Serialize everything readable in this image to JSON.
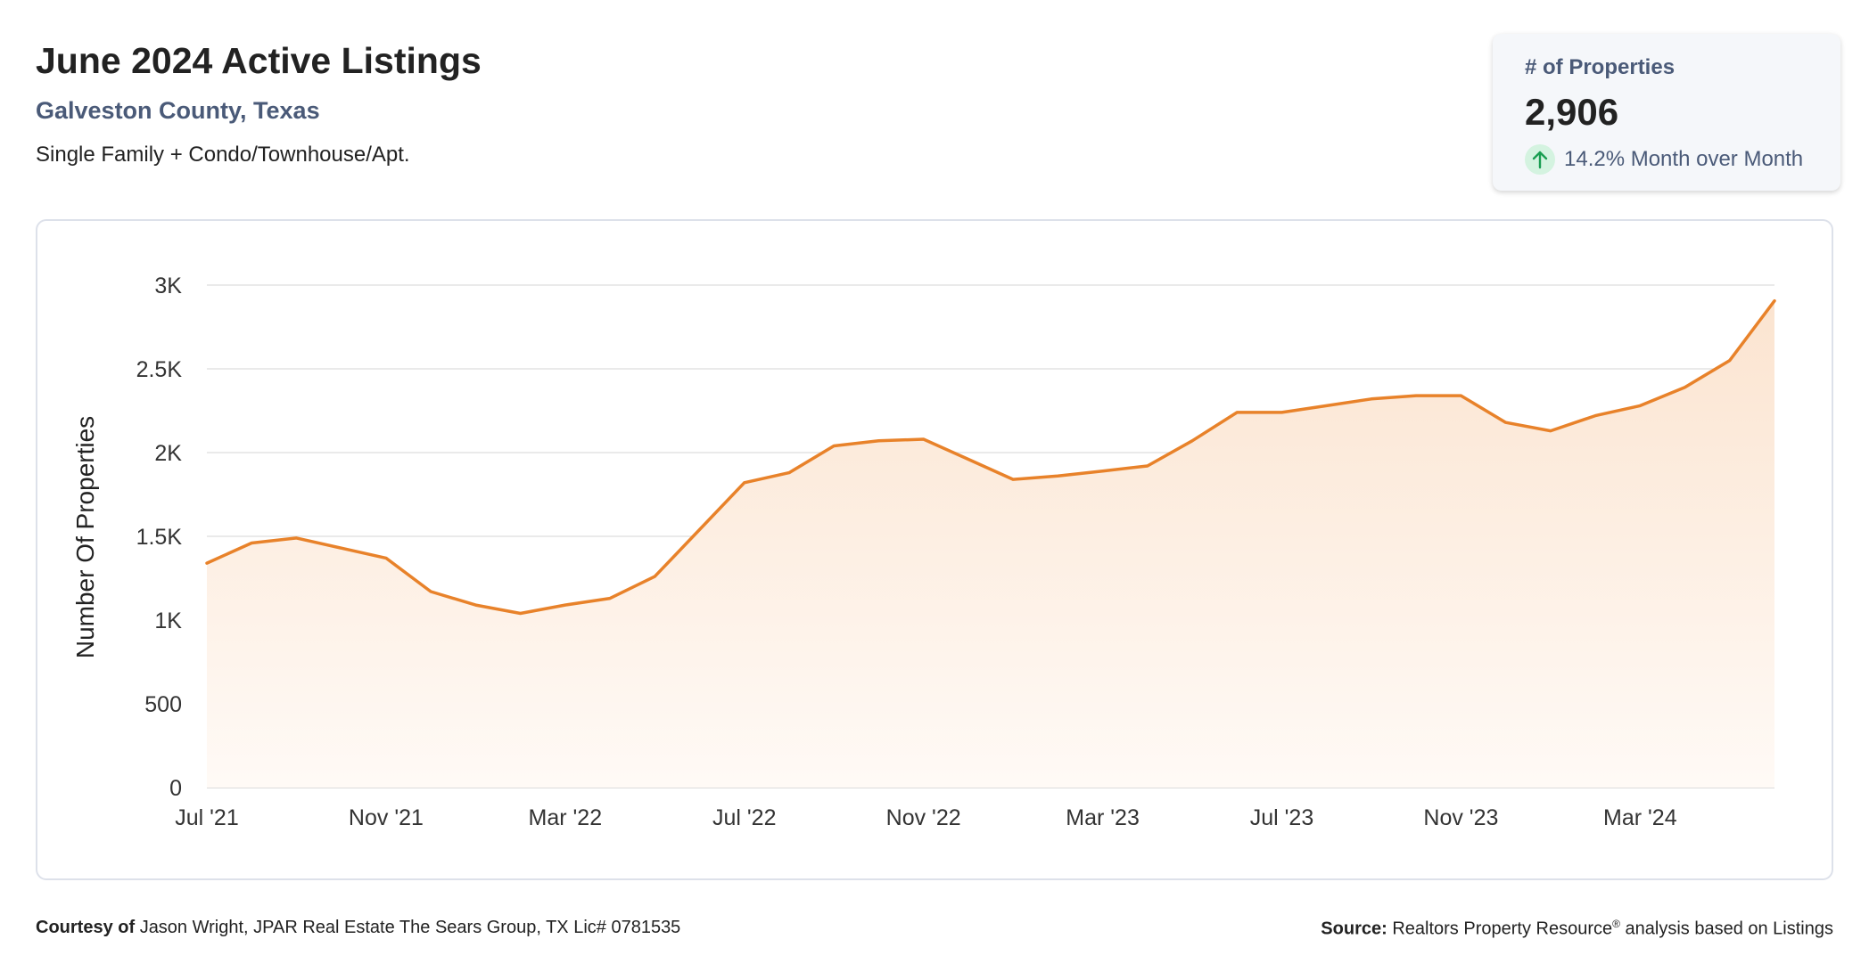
{
  "header": {
    "title": "June 2024 Active Listings",
    "subtitle": "Galveston County, Texas",
    "description": "Single Family + Condo/Townhouse/Apt."
  },
  "kpi": {
    "label": "# of Properties",
    "value": "2,906",
    "change_text": "14.2% Month over Month",
    "direction_icon": "arrow-up-icon"
  },
  "footer": {
    "courtesy_label": "Courtesy of",
    "courtesy_text": "Jason Wright, JPAR Real Estate The Sears Group, TX Lic# 0781535",
    "source_label": "Source:",
    "source_text_1": "Realtors Property Resource",
    "source_mark": "®",
    "source_text_2": "analysis based on Listings"
  },
  "colors": {
    "line": "#e8822a",
    "area_top": "#fbe4d0",
    "area_bottom": "#fffaf6",
    "grid": "#e4e4e4",
    "accent_text": "#4a5a78",
    "up_arrow": "#1a9e52"
  },
  "chart_data": {
    "type": "area",
    "title": "",
    "xlabel": "",
    "ylabel": "Number Of Properties",
    "ylim": [
      0,
      3000
    ],
    "yticks": [
      0,
      500,
      1000,
      1500,
      2000,
      2500,
      3000
    ],
    "ytick_labels": [
      "0",
      "500",
      "1K",
      "1.5K",
      "2K",
      "2.5K",
      "3K"
    ],
    "xtick_labels": [
      "Jul '21",
      "Nov '21",
      "Mar '22",
      "Jul '22",
      "Nov '22",
      "Mar '23",
      "Jul '23",
      "Nov '23",
      "Mar '24"
    ],
    "xtick_every": 4,
    "grid": true,
    "x": [
      "2021-07",
      "2021-08",
      "2021-09",
      "2021-10",
      "2021-11",
      "2021-12",
      "2022-01",
      "2022-02",
      "2022-03",
      "2022-04",
      "2022-05",
      "2022-06",
      "2022-07",
      "2022-08",
      "2022-09",
      "2022-10",
      "2022-11",
      "2022-12",
      "2023-01",
      "2023-02",
      "2023-03",
      "2023-04",
      "2023-05",
      "2023-06",
      "2023-07",
      "2023-08",
      "2023-09",
      "2023-10",
      "2023-11",
      "2023-12",
      "2024-01",
      "2024-02",
      "2024-03",
      "2024-04",
      "2024-05",
      "2024-06"
    ],
    "series": [
      {
        "values": [
          1340,
          1460,
          1490,
          1430,
          1370,
          1170,
          1090,
          1040,
          1090,
          1130,
          1260,
          1540,
          1820,
          1880,
          2040,
          2070,
          2080,
          1960,
          1840,
          1860,
          1890,
          1920,
          2070,
          2240,
          2240,
          2280,
          2320,
          2340,
          2340,
          2180,
          2130,
          2220,
          2280,
          2390,
          2550,
          2906
        ]
      }
    ]
  }
}
